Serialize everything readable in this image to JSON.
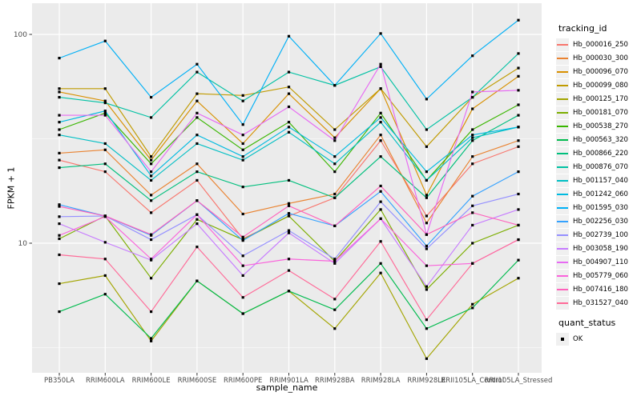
{
  "figure": {
    "background": "#FFFFFF",
    "panel_background": "#EBEBEB",
    "gridline_color": "#FFFFFF",
    "tick_label_color": "#4D4D4D"
  },
  "legend": {
    "tracking_title": "tracking_id",
    "quant_title": "quant_status",
    "quant_ok_label": "OK",
    "key_fill": "#F0F0F0",
    "point_color": "#000000"
  },
  "chart_data": {
    "type": "line",
    "title": "",
    "xlabel": "sample_name",
    "ylabel": "FPKM + 1",
    "y_scale": "log10",
    "y_ticks": [
      10,
      100
    ],
    "y_tick_labels": [
      "10",
      "100"
    ],
    "y_minor_breaks": [
      3.1623,
      31.623
    ],
    "ylim": [
      2.4,
      141
    ],
    "grid": true,
    "legend_position": "right",
    "legend_title": "tracking_id",
    "point_marker": "filled-black-square",
    "quant_status_legend": {
      "title": "quant_status",
      "items": [
        "OK"
      ]
    },
    "categories": [
      "PB350LA",
      "RRIM600LA",
      "RRIM600LE",
      "RRIM600SE",
      "RRIM600PE",
      "RRIM901LA",
      "RRIM928BA",
      "RRIM928LA",
      "RRIM928LE",
      "RRII105LA_Control",
      "RRII105LA_Stressed"
    ],
    "series": [
      {
        "name": "Hb_000016_250",
        "color": "#F8766D",
        "values": [
          25,
          22,
          14,
          20,
          10.5,
          13.5,
          16.5,
          31,
          13.5,
          24,
          29
        ]
      },
      {
        "name": "Hb_000030_300",
        "color": "#EA8331",
        "values": [
          27,
          28,
          17,
          24,
          13.8,
          15.5,
          17.2,
          33,
          12.5,
          26,
          31
        ]
      },
      {
        "name": "Hb_000096_070",
        "color": "#D89000",
        "values": [
          53,
          48,
          25,
          48,
          30,
          52,
          32,
          55,
          17,
          44,
          63
        ]
      },
      {
        "name": "Hb_000099_080",
        "color": "#C09B00",
        "values": [
          55,
          55,
          26,
          52,
          51,
          56,
          35,
          55,
          29,
          50,
          69
        ]
      },
      {
        "name": "Hb_000125_170",
        "color": "#A3A500",
        "values": [
          6.4,
          7,
          3.4,
          6.6,
          4.6,
          5.9,
          3.9,
          7.2,
          2.8,
          5.1,
          6.8
        ]
      },
      {
        "name": "Hb_000181_070",
        "color": "#7CAE00",
        "values": [
          10.5,
          13.5,
          6.8,
          13,
          10.4,
          13.5,
          8.2,
          14.5,
          6,
          10,
          12.2
        ]
      },
      {
        "name": "Hb_000538_270",
        "color": "#39B600",
        "values": [
          35,
          42,
          24,
          40,
          28,
          38,
          22,
          42,
          20,
          35,
          46
        ]
      },
      {
        "name": "Hb_000563_320",
        "color": "#00BB4E",
        "values": [
          4.7,
          5.7,
          3.5,
          6.6,
          4.6,
          5.9,
          4.8,
          8,
          3.9,
          4.9,
          8.3
        ]
      },
      {
        "name": "Hb_000866_220",
        "color": "#00BF7D",
        "values": [
          23,
          24,
          16,
          22,
          18.6,
          20,
          16.5,
          26,
          16.5,
          31,
          41
        ]
      },
      {
        "name": "Hb_000876_070",
        "color": "#00C1A3",
        "values": [
          50,
          47,
          40,
          66,
          48,
          66,
          57,
          70,
          35,
          50,
          81
        ]
      },
      {
        "name": "Hb_001157_040",
        "color": "#00BFC4",
        "values": [
          33,
          30,
          20,
          30,
          25,
          34,
          24,
          38,
          20,
          32,
          36
        ]
      },
      {
        "name": "Hb_001242_060",
        "color": "#00BAE0",
        "values": [
          38,
          43,
          21,
          33,
          26,
          36,
          26,
          40,
          22,
          33,
          36
        ]
      },
      {
        "name": "Hb_001595_030",
        "color": "#00B0F6",
        "values": [
          77,
          93,
          50,
          72,
          37,
          98,
          57,
          101,
          49,
          79,
          117
        ]
      },
      {
        "name": "Hb_002256_030",
        "color": "#35A2FF",
        "values": [
          15.3,
          13.5,
          10.9,
          16,
          10.3,
          13.9,
          12.1,
          17.7,
          9.7,
          16.8,
          22
        ]
      },
      {
        "name": "Hb_002739_100",
        "color": "#9590FF",
        "values": [
          13.4,
          13.5,
          10.4,
          13.7,
          8.7,
          11.5,
          8.4,
          15.8,
          9.4,
          15.1,
          17.2
        ]
      },
      {
        "name": "Hb_003058_190",
        "color": "#C77CFF",
        "values": [
          12.4,
          10.1,
          8.3,
          12.4,
          7,
          11.2,
          8,
          13.1,
          6.2,
          12.2,
          14.5
        ]
      },
      {
        "name": "Hb_004907_110",
        "color": "#E76BF3",
        "values": [
          41,
          41,
          22,
          42,
          33,
          45,
          31,
          72,
          11,
          53,
          54
        ]
      },
      {
        "name": "Hb_005779_060",
        "color": "#FA62DB",
        "values": [
          10.9,
          13.4,
          8.4,
          13.7,
          7.8,
          8.4,
          8.2,
          13.1,
          7.8,
          8,
          10.4
        ]
      },
      {
        "name": "Hb_007416_180",
        "color": "#FF62BC",
        "values": [
          15,
          13.5,
          11,
          16,
          10.7,
          15.1,
          12.1,
          18.8,
          11,
          14,
          12.2
        ]
      },
      {
        "name": "Hb_031527_040",
        "color": "#FF6A98",
        "values": [
          8.8,
          8.4,
          4.7,
          9.6,
          5.5,
          7.4,
          5.4,
          10.2,
          4.3,
          8,
          10.4
        ]
      }
    ]
  }
}
